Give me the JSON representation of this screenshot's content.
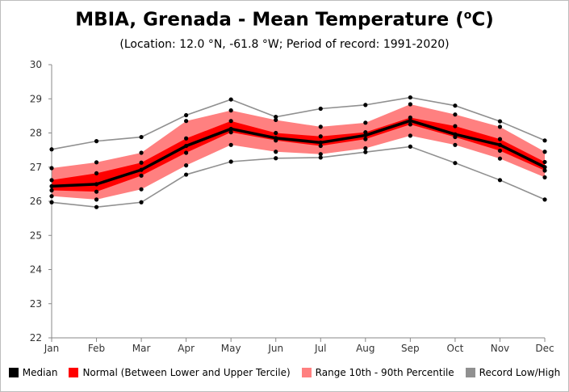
{
  "title": "MBIA, Grenada - Mean Temperature (",
  "title_unit_sup": "o",
  "title_unit_suffix": "C)",
  "subtitle": "(Location: 12.0 °N, -61.8 °W; Period of record: 1991-2020)",
  "legend": [
    {
      "label": "Median",
      "color": "#000000"
    },
    {
      "label": "Normal (Between Lower and Upper Tercile)",
      "color": "#ff0000"
    },
    {
      "label": "Range 10th - 90th Percentile",
      "color": "#ff8080"
    },
    {
      "label": "Record Low/High",
      "color": "#909090"
    }
  ],
  "chart_data": {
    "type": "area",
    "categories": [
      "Jan",
      "Feb",
      "Mar",
      "Apr",
      "May",
      "Jun",
      "Jul",
      "Aug",
      "Sep",
      "Oct",
      "Nov",
      "Dec"
    ],
    "ylim": [
      22,
      30
    ],
    "yticks": [
      "22",
      "23",
      "24",
      "25",
      "26",
      "27",
      "28",
      "29",
      "30"
    ],
    "grid": false,
    "legend_position": "bottom",
    "series": [
      {
        "name": "Record Low/High",
        "type": "lines",
        "low": [
          25.97,
          25.83,
          25.97,
          26.78,
          27.16,
          27.26,
          27.28,
          27.44,
          27.6,
          27.12,
          26.62,
          26.05
        ],
        "high": [
          27.52,
          27.76,
          27.88,
          28.52,
          28.98,
          28.47,
          28.71,
          28.82,
          29.04,
          28.8,
          28.34,
          27.78
        ]
      },
      {
        "name": "Range 10th - 90th Percentile",
        "type": "band",
        "low": [
          26.15,
          26.05,
          26.35,
          27.05,
          27.65,
          27.45,
          27.38,
          27.55,
          27.92,
          27.65,
          27.25,
          26.7
        ],
        "high": [
          26.97,
          27.14,
          27.42,
          28.35,
          28.66,
          28.38,
          28.18,
          28.3,
          28.84,
          28.54,
          28.18,
          27.45
        ]
      },
      {
        "name": "Normal (Between Lower and Upper Tercile)",
        "type": "band",
        "low": [
          26.32,
          26.28,
          26.75,
          27.42,
          28.02,
          27.78,
          27.62,
          27.82,
          28.25,
          27.88,
          27.48,
          26.9
        ],
        "high": [
          26.62,
          26.82,
          27.13,
          27.84,
          28.35,
          28.0,
          27.9,
          28.02,
          28.45,
          28.2,
          27.82,
          27.15
        ]
      },
      {
        "name": "Median",
        "type": "line",
        "values": [
          26.44,
          26.5,
          26.92,
          27.62,
          28.12,
          27.85,
          27.72,
          27.93,
          28.36,
          27.96,
          27.65,
          27.0
        ]
      }
    ]
  }
}
